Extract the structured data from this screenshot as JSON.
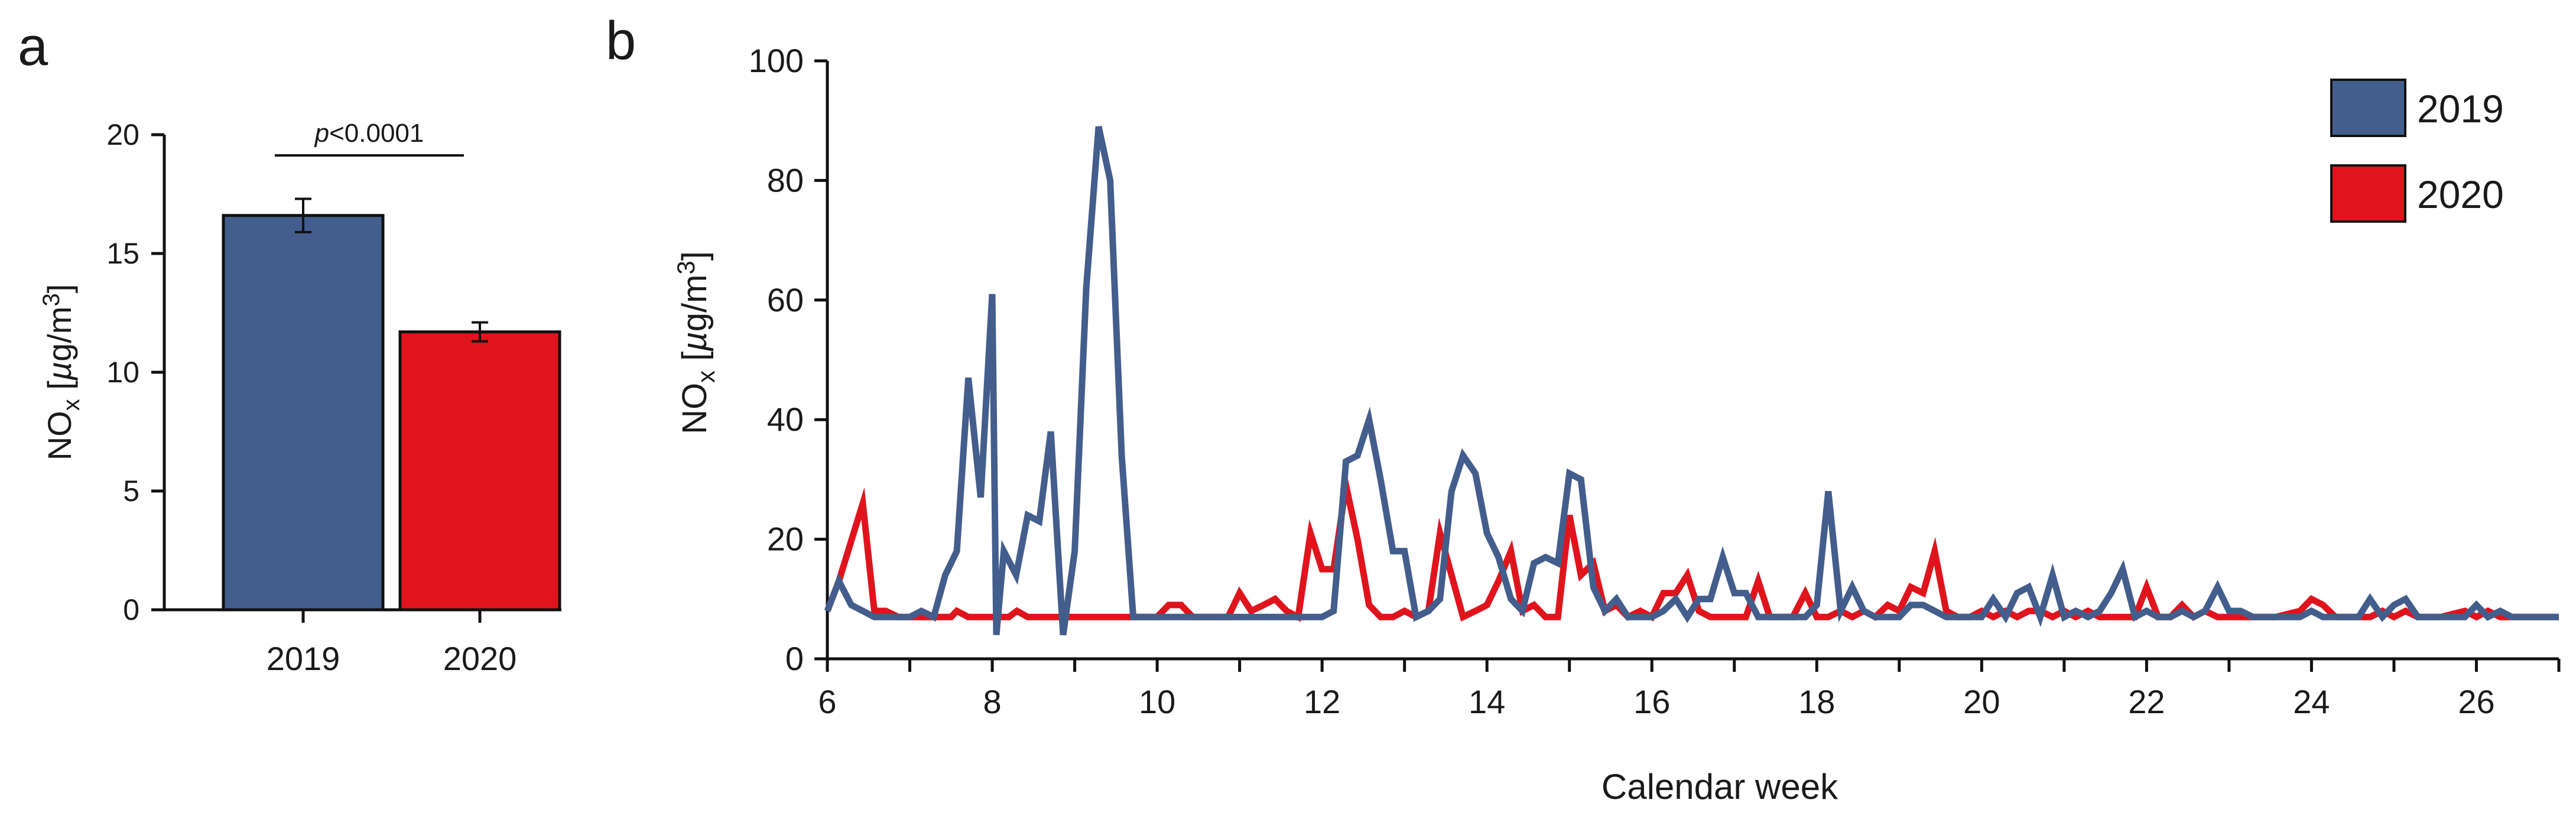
{
  "chart_data": [
    {
      "panel_label": "a",
      "type": "bar",
      "categories": [
        "2019",
        "2020"
      ],
      "values": [
        16.6,
        11.7
      ],
      "errors": [
        0.7,
        0.4
      ],
      "colors": [
        "#435e8c",
        "#e0141d"
      ],
      "ylabel_main": "NO",
      "ylabel_sub": "x",
      "ylabel_rest_open": " [",
      "ylabel_mu": "µ",
      "ylabel_g": "g/m",
      "ylabel_sup": "3",
      "ylabel_close": "]",
      "ylim": [
        0,
        20
      ],
      "yticks": [
        0,
        5,
        10,
        15,
        20
      ],
      "annotation_p": "p",
      "annotation_rest": "<0.0001"
    },
    {
      "panel_label": "b",
      "type": "line",
      "xlabel": "Calendar week",
      "ylabel_main": "NO",
      "ylabel_sub": "x",
      "ylabel_rest_open": " [",
      "ylabel_mu": "µ",
      "ylabel_g": "g/m",
      "ylabel_sup": "3",
      "ylabel_close": "]",
      "xlim": [
        6,
        27
      ],
      "ylim": [
        0,
        100
      ],
      "xticks": [
        6,
        8,
        10,
        12,
        14,
        16,
        18,
        20,
        22,
        24,
        26
      ],
      "yticks": [
        0,
        20,
        40,
        60,
        80,
        100
      ],
      "legend_position": "top-right",
      "series": [
        {
          "name": "2020",
          "color": "#e0141d",
          "points": [
            [
              6.0,
              8
            ],
            [
              6.14,
              13
            ],
            [
              6.43,
              26
            ],
            [
              6.57,
              8
            ],
            [
              6.71,
              8
            ],
            [
              6.86,
              7
            ],
            [
              7.0,
              7
            ],
            [
              7.5,
              7
            ],
            [
              7.57,
              8
            ],
            [
              7.71,
              7
            ],
            [
              8.0,
              7
            ],
            [
              8.2,
              7
            ],
            [
              8.3,
              8
            ],
            [
              8.43,
              7
            ],
            [
              9.0,
              7
            ],
            [
              10.0,
              7
            ],
            [
              10.14,
              9
            ],
            [
              10.29,
              9
            ],
            [
              10.43,
              7
            ],
            [
              10.71,
              7
            ],
            [
              10.86,
              7
            ],
            [
              11.0,
              11
            ],
            [
              11.14,
              8
            ],
            [
              11.29,
              9
            ],
            [
              11.43,
              10
            ],
            [
              11.57,
              8
            ],
            [
              11.71,
              7
            ],
            [
              11.86,
              21
            ],
            [
              12.0,
              15
            ],
            [
              12.14,
              15
            ],
            [
              12.29,
              29
            ],
            [
              12.43,
              20
            ],
            [
              12.57,
              9
            ],
            [
              12.71,
              7
            ],
            [
              12.86,
              7
            ],
            [
              13.0,
              8
            ],
            [
              13.14,
              7
            ],
            [
              13.29,
              8
            ],
            [
              13.43,
              21
            ],
            [
              13.57,
              14
            ],
            [
              13.71,
              7
            ],
            [
              13.86,
              8
            ],
            [
              14.0,
              9
            ],
            [
              14.14,
              13
            ],
            [
              14.29,
              18
            ],
            [
              14.43,
              8
            ],
            [
              14.57,
              9
            ],
            [
              14.71,
              7
            ],
            [
              14.86,
              7
            ],
            [
              15.0,
              24
            ],
            [
              15.14,
              14
            ],
            [
              15.29,
              16
            ],
            [
              15.43,
              8
            ],
            [
              15.57,
              9
            ],
            [
              15.71,
              7
            ],
            [
              15.86,
              8
            ],
            [
              16.0,
              7
            ],
            [
              16.14,
              11
            ],
            [
              16.29,
              11
            ],
            [
              16.43,
              14
            ],
            [
              16.57,
              8
            ],
            [
              16.71,
              7
            ],
            [
              16.86,
              7
            ],
            [
              17.0,
              7
            ],
            [
              17.14,
              7
            ],
            [
              17.29,
              13
            ],
            [
              17.43,
              7
            ],
            [
              17.57,
              7
            ],
            [
              17.71,
              7
            ],
            [
              17.86,
              11
            ],
            [
              18.0,
              7
            ],
            [
              18.14,
              7
            ],
            [
              18.29,
              8
            ],
            [
              18.43,
              7
            ],
            [
              18.57,
              8
            ],
            [
              18.71,
              7
            ],
            [
              18.86,
              9
            ],
            [
              19.0,
              8
            ],
            [
              19.14,
              12
            ],
            [
              19.29,
              11
            ],
            [
              19.43,
              18
            ],
            [
              19.57,
              8
            ],
            [
              19.71,
              7
            ],
            [
              19.86,
              7
            ],
            [
              20.0,
              8
            ],
            [
              20.14,
              7
            ],
            [
              20.29,
              8
            ],
            [
              20.43,
              7
            ],
            [
              20.57,
              8
            ],
            [
              20.71,
              8
            ],
            [
              20.86,
              7
            ],
            [
              21.0,
              8
            ],
            [
              21.14,
              7
            ],
            [
              21.29,
              8
            ],
            [
              21.43,
              7
            ],
            [
              21.57,
              7
            ],
            [
              21.71,
              7
            ],
            [
              21.86,
              7
            ],
            [
              22.0,
              12
            ],
            [
              22.14,
              7
            ],
            [
              22.29,
              7
            ],
            [
              22.43,
              9
            ],
            [
              22.57,
              7
            ],
            [
              22.71,
              8
            ],
            [
              22.86,
              7
            ],
            [
              23.0,
              7
            ],
            [
              23.14,
              7
            ],
            [
              23.29,
              7
            ],
            [
              23.57,
              7
            ],
            [
              23.86,
              8
            ],
            [
              24.0,
              10
            ],
            [
              24.14,
              9
            ],
            [
              24.29,
              7
            ],
            [
              24.43,
              7
            ],
            [
              24.71,
              7
            ],
            [
              24.86,
              8
            ],
            [
              25.0,
              7
            ],
            [
              25.14,
              8
            ],
            [
              25.29,
              7
            ],
            [
              25.57,
              7
            ],
            [
              25.86,
              8
            ],
            [
              26.0,
              7
            ],
            [
              26.14,
              8
            ],
            [
              26.29,
              7
            ],
            [
              26.71,
              7
            ],
            [
              27.0,
              7
            ]
          ]
        },
        {
          "name": "2019",
          "color": "#435e8c",
          "points": [
            [
              6.0,
              8
            ],
            [
              6.14,
              13
            ],
            [
              6.29,
              9
            ],
            [
              6.43,
              8
            ],
            [
              6.57,
              7
            ],
            [
              6.71,
              7
            ],
            [
              6.86,
              7
            ],
            [
              7.0,
              7
            ],
            [
              7.14,
              8
            ],
            [
              7.29,
              7
            ],
            [
              7.43,
              14
            ],
            [
              7.57,
              18
            ],
            [
              7.71,
              47
            ],
            [
              7.86,
              27
            ],
            [
              8.0,
              61
            ],
            [
              8.05,
              4
            ],
            [
              8.14,
              18
            ],
            [
              8.29,
              14
            ],
            [
              8.43,
              24
            ],
            [
              8.57,
              23
            ],
            [
              8.71,
              38
            ],
            [
              8.86,
              4
            ],
            [
              9.0,
              18
            ],
            [
              9.14,
              62
            ],
            [
              9.29,
              89
            ],
            [
              9.43,
              80
            ],
            [
              9.57,
              34
            ],
            [
              9.71,
              7
            ],
            [
              10.0,
              7
            ],
            [
              11.0,
              7
            ],
            [
              11.57,
              7
            ],
            [
              11.71,
              7
            ],
            [
              11.86,
              7
            ],
            [
              12.0,
              7
            ],
            [
              12.14,
              8
            ],
            [
              12.29,
              33
            ],
            [
              12.43,
              34
            ],
            [
              12.57,
              40
            ],
            [
              12.71,
              30
            ],
            [
              12.86,
              18
            ],
            [
              13.0,
              18
            ],
            [
              13.14,
              7
            ],
            [
              13.29,
              8
            ],
            [
              13.43,
              10
            ],
            [
              13.57,
              28
            ],
            [
              13.71,
              34
            ],
            [
              13.86,
              31
            ],
            [
              14.0,
              21
            ],
            [
              14.14,
              17
            ],
            [
              14.29,
              10
            ],
            [
              14.43,
              8
            ],
            [
              14.57,
              16
            ],
            [
              14.71,
              17
            ],
            [
              14.86,
              16
            ],
            [
              15.0,
              31
            ],
            [
              15.14,
              30
            ],
            [
              15.29,
              12
            ],
            [
              15.43,
              8
            ],
            [
              15.57,
              10
            ],
            [
              15.71,
              7
            ],
            [
              15.86,
              7
            ],
            [
              16.0,
              7
            ],
            [
              16.14,
              8
            ],
            [
              16.29,
              10
            ],
            [
              16.43,
              7
            ],
            [
              16.57,
              10
            ],
            [
              16.71,
              10
            ],
            [
              16.86,
              17
            ],
            [
              17.0,
              11
            ],
            [
              17.14,
              11
            ],
            [
              17.29,
              7
            ],
            [
              17.43,
              7
            ],
            [
              17.57,
              7
            ],
            [
              17.71,
              7
            ],
            [
              17.86,
              7
            ],
            [
              18.0,
              9
            ],
            [
              18.14,
              28
            ],
            [
              18.29,
              8
            ],
            [
              18.43,
              12
            ],
            [
              18.57,
              8
            ],
            [
              18.71,
              7
            ],
            [
              18.86,
              7
            ],
            [
              19.0,
              7
            ],
            [
              19.14,
              9
            ],
            [
              19.29,
              9
            ],
            [
              19.43,
              8
            ],
            [
              19.57,
              7
            ],
            [
              19.71,
              7
            ],
            [
              19.86,
              7
            ],
            [
              20.0,
              7
            ],
            [
              20.14,
              10
            ],
            [
              20.29,
              7
            ],
            [
              20.43,
              11
            ],
            [
              20.57,
              12
            ],
            [
              20.71,
              7
            ],
            [
              20.86,
              14
            ],
            [
              21.0,
              7
            ],
            [
              21.14,
              8
            ],
            [
              21.29,
              7
            ],
            [
              21.43,
              8
            ],
            [
              21.57,
              11
            ],
            [
              21.71,
              15
            ],
            [
              21.86,
              7
            ],
            [
              22.0,
              8
            ],
            [
              22.14,
              7
            ],
            [
              22.29,
              7
            ],
            [
              22.43,
              8
            ],
            [
              22.57,
              7
            ],
            [
              22.71,
              8
            ],
            [
              22.86,
              12
            ],
            [
              23.0,
              8
            ],
            [
              23.14,
              8
            ],
            [
              23.29,
              7
            ],
            [
              23.43,
              7
            ],
            [
              23.57,
              7
            ],
            [
              23.71,
              7
            ],
            [
              23.86,
              7
            ],
            [
              24.0,
              8
            ],
            [
              24.14,
              7
            ],
            [
              24.29,
              7
            ],
            [
              24.43,
              7
            ],
            [
              24.57,
              7
            ],
            [
              24.71,
              10
            ],
            [
              24.86,
              7
            ],
            [
              25.0,
              9
            ],
            [
              25.14,
              10
            ],
            [
              25.29,
              7
            ],
            [
              25.43,
              7
            ],
            [
              25.57,
              7
            ],
            [
              25.71,
              7
            ],
            [
              25.86,
              7
            ],
            [
              26.0,
              9
            ],
            [
              26.14,
              7
            ],
            [
              26.29,
              8
            ],
            [
              26.43,
              7
            ],
            [
              26.71,
              7
            ],
            [
              27.0,
              7
            ]
          ]
        }
      ],
      "legend": [
        {
          "name": "2019",
          "color": "#435e8c"
        },
        {
          "name": "2020",
          "color": "#e0141d"
        }
      ]
    }
  ]
}
